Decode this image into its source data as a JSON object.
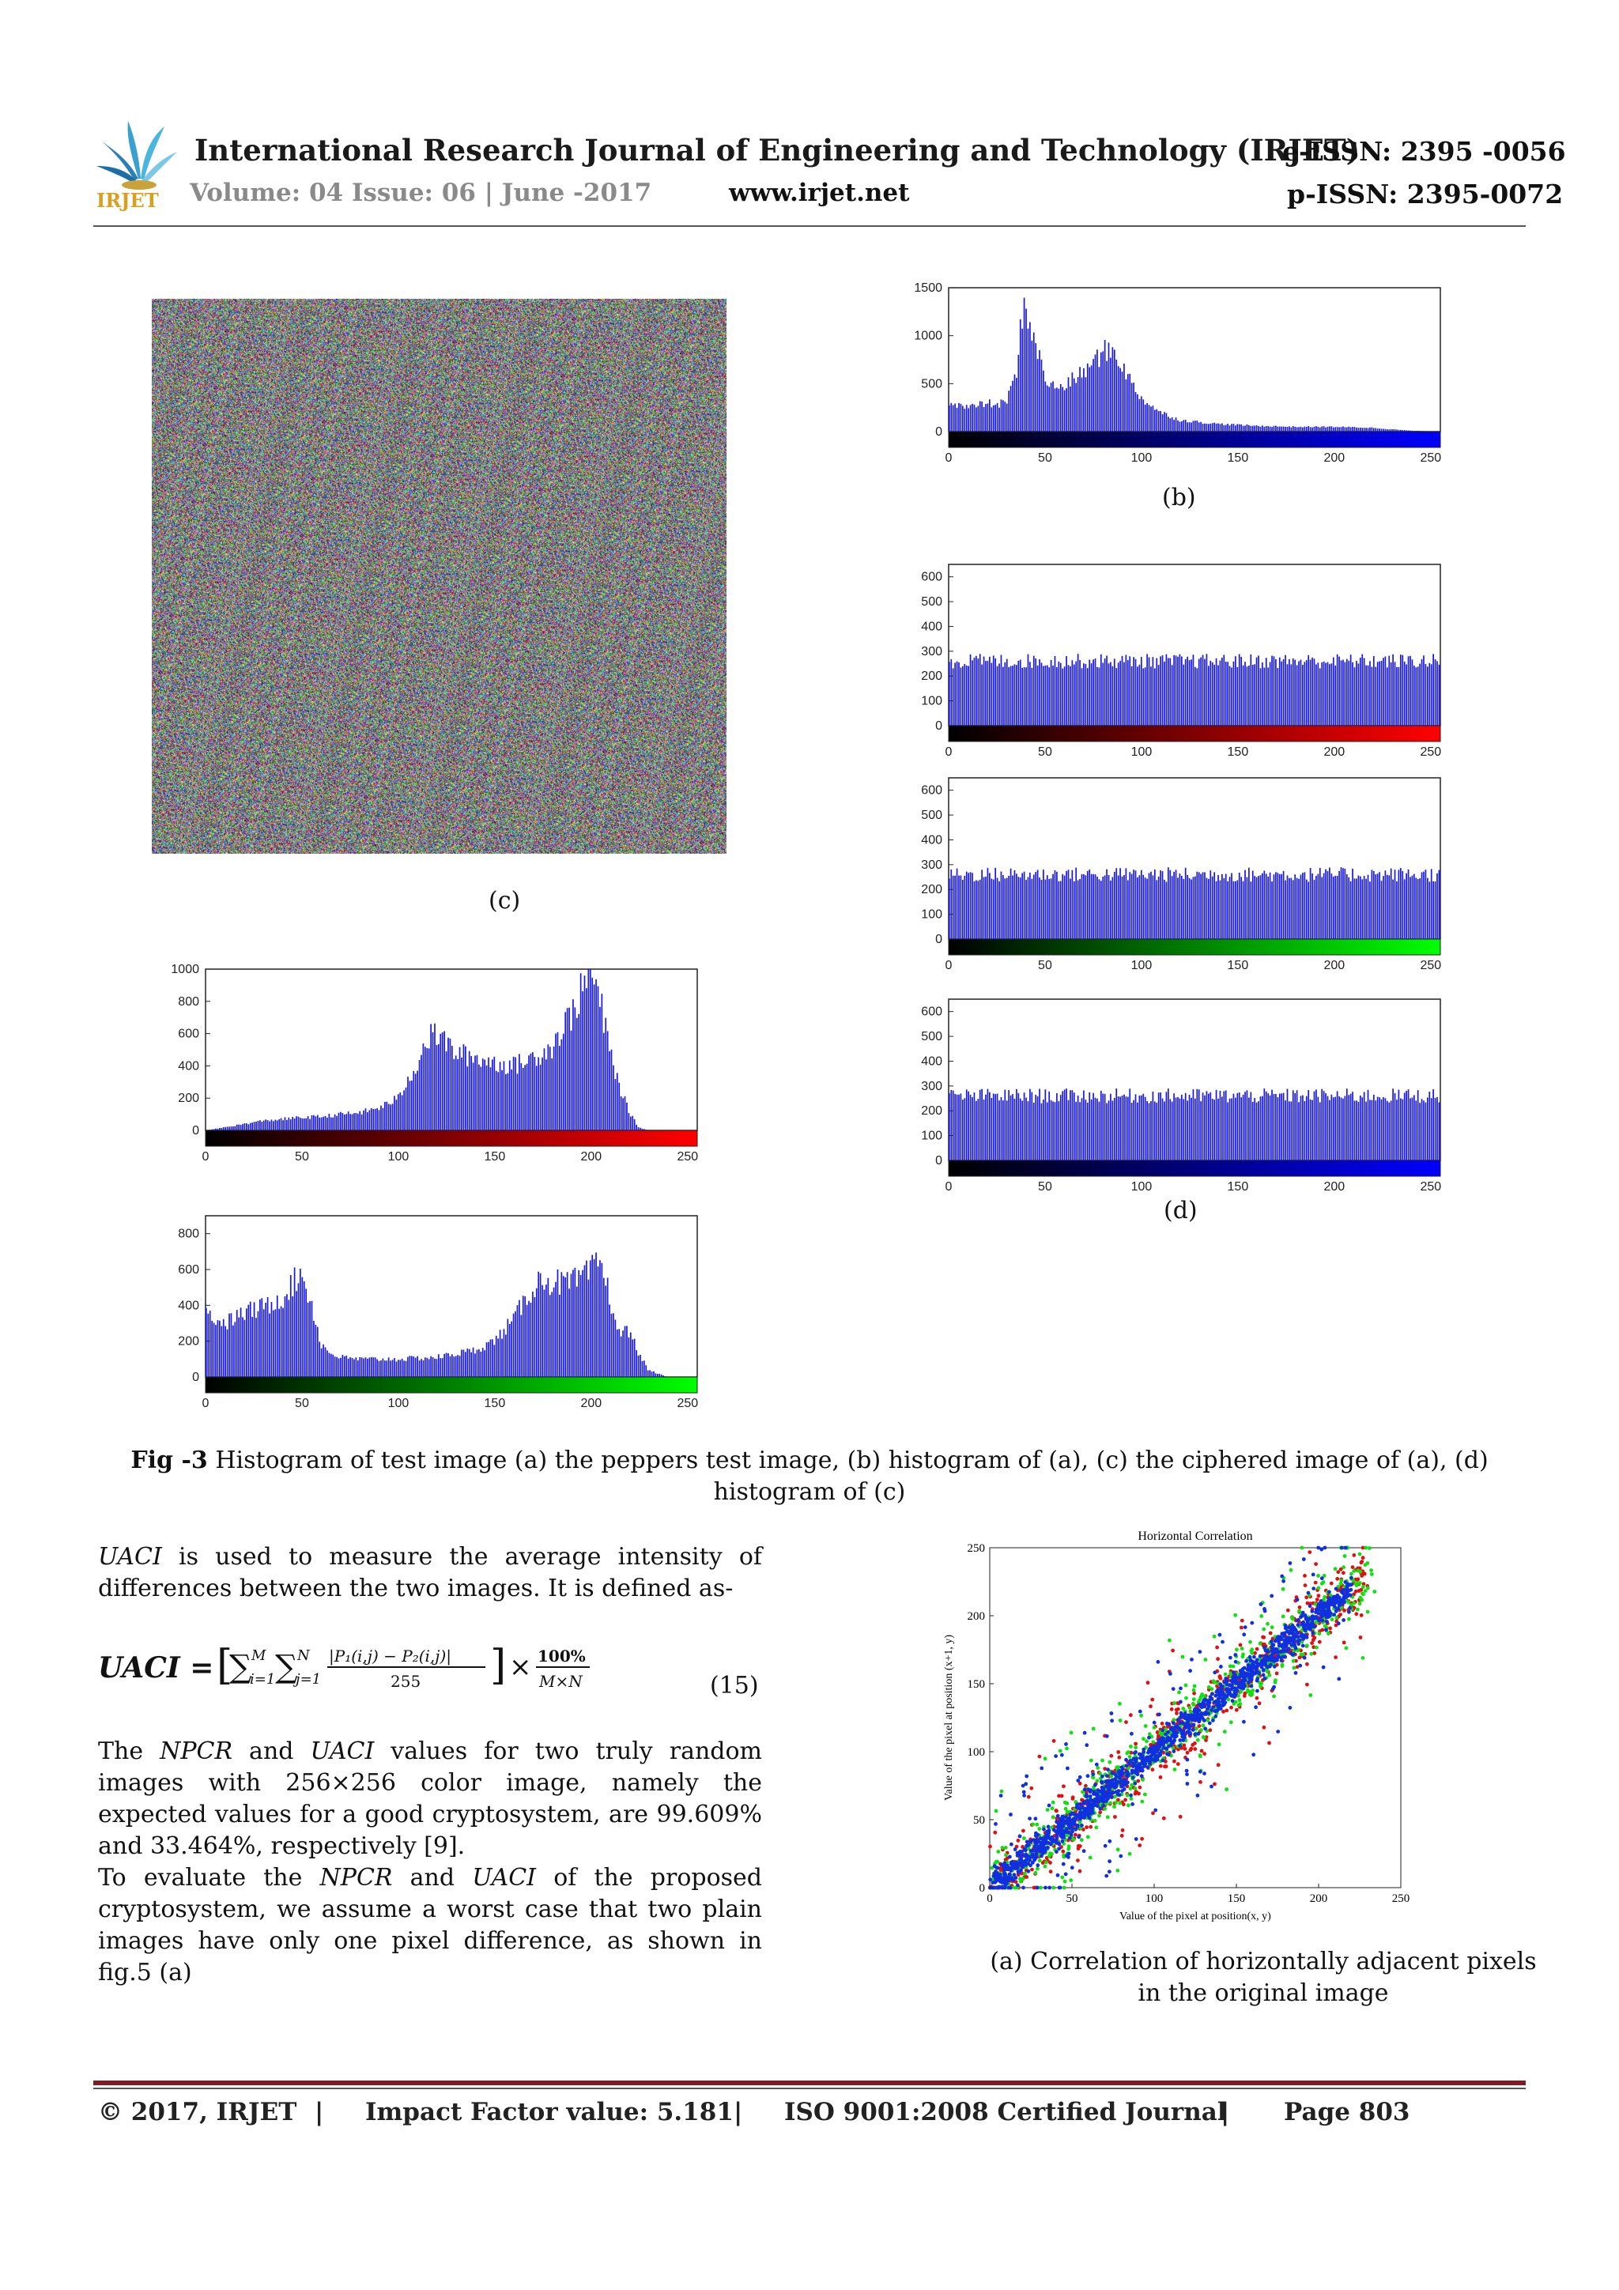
{
  "header": {
    "journal_title": "International Research Journal of Engineering and Technology (IRJET)",
    "e_issn": "e-ISSN: 2395 -0056",
    "volume": "Volume: 04 Issue: 06 | June -2017",
    "website": "www.irjet.net",
    "p_issn": "p-ISSN: 2395-0072",
    "logo_text": "IRJET"
  },
  "figure": {
    "label_c": "(c)",
    "label_b": "(b)",
    "label_d": "(d)",
    "caption_bold": "Fig -3",
    "caption_text": " Histogram of test image (a) the peppers test image, (b) histogram of (a), (c) the ciphered image of (a), (d) histogram of (c)"
  },
  "chart_data": [
    {
      "type": "bar",
      "id": "hist-a-red",
      "colorbar": "red",
      "x": [
        0,
        10,
        20,
        30,
        40,
        50,
        60,
        70,
        80,
        90,
        100,
        110,
        115,
        120,
        130,
        140,
        150,
        160,
        170,
        180,
        190,
        195,
        200,
        205,
        210,
        215,
        220,
        225,
        230,
        255
      ],
      "values": [
        0,
        20,
        40,
        60,
        70,
        80,
        85,
        100,
        110,
        140,
        200,
        420,
        560,
        600,
        480,
        450,
        420,
        400,
        450,
        520,
        720,
        850,
        1000,
        800,
        500,
        280,
        120,
        20,
        0,
        0
      ],
      "xlim": [
        0,
        255
      ],
      "ylim": [
        0,
        1000
      ],
      "yticks": [
        0,
        200,
        400,
        600,
        800,
        1000
      ],
      "xticks": [
        0,
        50,
        100,
        150,
        200,
        250
      ]
    },
    {
      "type": "bar",
      "id": "hist-a-green",
      "colorbar": "green",
      "x": [
        0,
        10,
        20,
        30,
        40,
        45,
        50,
        55,
        60,
        65,
        70,
        80,
        100,
        120,
        140,
        150,
        160,
        170,
        175,
        180,
        190,
        200,
        205,
        210,
        215,
        220,
        225,
        230,
        240,
        255
      ],
      "values": [
        350,
        300,
        360,
        390,
        450,
        520,
        580,
        400,
        180,
        130,
        110,
        100,
        100,
        110,
        150,
        200,
        320,
        500,
        550,
        530,
        520,
        580,
        660,
        450,
        240,
        260,
        140,
        40,
        0,
        0
      ],
      "xlim": [
        0,
        255
      ],
      "ylim": [
        0,
        900
      ],
      "yticks": [
        0,
        200,
        400,
        600,
        800
      ],
      "xticks": [
        0,
        50,
        100,
        150,
        200,
        250
      ]
    },
    {
      "type": "bar",
      "id": "hist-a-blue",
      "colorbar": "blue",
      "x": [
        0,
        5,
        10,
        20,
        25,
        30,
        35,
        38,
        40,
        45,
        50,
        55,
        60,
        70,
        75,
        80,
        85,
        90,
        95,
        100,
        110,
        120,
        140,
        160,
        180,
        200,
        220,
        230,
        240,
        255
      ],
      "values": [
        320,
        280,
        250,
        300,
        270,
        330,
        600,
        1250,
        1300,
        900,
        550,
        450,
        480,
        620,
        720,
        830,
        850,
        700,
        500,
        350,
        200,
        120,
        80,
        60,
        50,
        50,
        40,
        25,
        10,
        0
      ],
      "xlim": [
        0,
        255
      ],
      "ylim": [
        0,
        1500
      ],
      "yticks": [
        0,
        500,
        1000,
        1500
      ],
      "xticks": [
        0,
        50,
        100,
        150,
        200,
        250
      ]
    },
    {
      "type": "bar",
      "id": "hist-c-red",
      "colorbar": "red",
      "x": [
        0,
        255
      ],
      "values": [
        255,
        255
      ],
      "note": "flat, values fluctuate approx 230-290",
      "xlim": [
        0,
        255
      ],
      "ylim": [
        0,
        650
      ],
      "yticks": [
        0,
        100,
        200,
        300,
        400,
        500,
        600
      ],
      "xticks": [
        0,
        50,
        100,
        150,
        200,
        250
      ]
    },
    {
      "type": "bar",
      "id": "hist-c-green",
      "colorbar": "green",
      "x": [
        0,
        255
      ],
      "values": [
        255,
        255
      ],
      "note": "flat, values fluctuate approx 230-290",
      "xlim": [
        0,
        255
      ],
      "ylim": [
        0,
        650
      ],
      "yticks": [
        0,
        100,
        200,
        300,
        400,
        500,
        600
      ],
      "xticks": [
        0,
        50,
        100,
        150,
        200,
        250
      ]
    },
    {
      "type": "bar",
      "id": "hist-c-blue",
      "colorbar": "blue",
      "x": [
        0,
        255
      ],
      "values": [
        255,
        255
      ],
      "note": "flat, values fluctuate approx 230-290",
      "xlim": [
        0,
        255
      ],
      "ylim": [
        0,
        650
      ],
      "yticks": [
        0,
        100,
        200,
        300,
        400,
        500,
        600
      ],
      "xticks": [
        0,
        50,
        100,
        150,
        200,
        250
      ]
    },
    {
      "type": "scatter",
      "id": "horizontal-correlation",
      "title": "Horizontal Correlation",
      "xlabel": "Value of the pixel at position(x, y)",
      "ylabel": "Value of the pixel at position (x+1, y)",
      "xlim": [
        0,
        250
      ],
      "ylim": [
        0,
        250
      ],
      "xticks": [
        0,
        50,
        100,
        150,
        200,
        250
      ],
      "yticks": [
        0,
        50,
        100,
        150,
        200,
        250
      ],
      "series": [
        {
          "name": "red",
          "color": "#e01010",
          "relation": "y≈x",
          "range": [
            0,
            230
          ]
        },
        {
          "name": "green",
          "color": "#10e010",
          "relation": "y≈x",
          "range": [
            0,
            235
          ]
        },
        {
          "name": "blue",
          "color": "#1030e0",
          "relation": "y≈x",
          "range": [
            0,
            220
          ]
        }
      ]
    }
  ],
  "body": {
    "para1_term": "UACI",
    "para1_text": " is used to measure the average intensity of differences between the two images. It is defined as-",
    "equation_lhs": "UACI =",
    "equation_frac_num": "|P₁(i,j) − P₂(i,j)|",
    "equation_frac_den": "255",
    "equation_pct_num": "100%",
    "equation_pct_den": "M×N",
    "equation_sum1": "∑",
    "equation_sum1_upper": "M",
    "equation_sum1_lower": "i=1",
    "equation_sum2": "∑",
    "equation_sum2_upper": "N",
    "equation_sum2_lower": "j=1",
    "equation_times": "×",
    "equation_number": "(15)",
    "para2_a": "The ",
    "para2_npcr": "NPCR",
    "para2_b": " and ",
    "para2_uaci": "UACI",
    "para2_c": " values for two truly random images with 256×256 color image, namely the expected values for a good cryptosystem, are 99.609% and 33.464%, respectively [9].",
    "para3_a": "To evaluate the ",
    "para3_npcr": "NPCR",
    "para3_b": " and ",
    "para3_uaci": "UACI",
    "para3_c": " of the proposed cryptosystem, we assume a worst case that two plain images have only one pixel difference, as shown in fig.5 (a)"
  },
  "scatter_caption_line1": "(a) Correlation of horizontally adjacent pixels",
  "scatter_caption_line2": "in the original image",
  "footer": {
    "copyright": "© 2017, IRJET",
    "sep1": "|",
    "impact": "Impact Factor value: 5.181",
    "sep2": "|",
    "iso": "ISO 9001:2008 Certified Journal",
    "sep3": "|",
    "page": "Page 803"
  }
}
